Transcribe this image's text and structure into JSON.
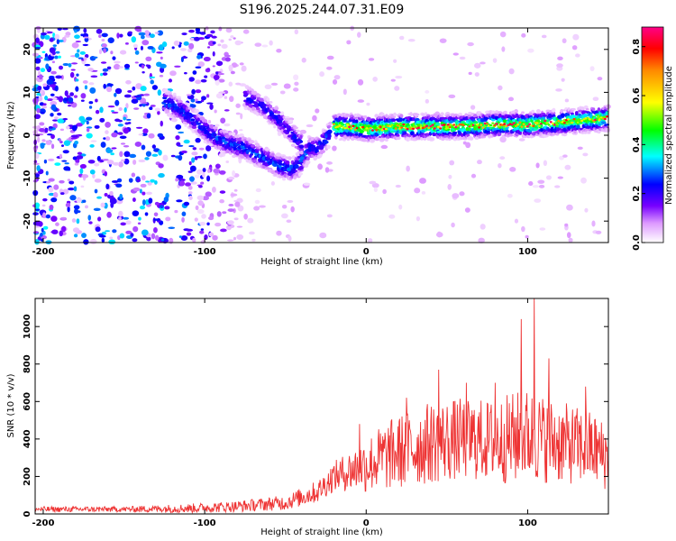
{
  "title": "S196.2025.244.07.31.E09",
  "chart_data": [
    {
      "type": "heatmap",
      "title": "S196.2025.244.07.31.E09",
      "xlabel": "Height of straight line (km)",
      "ylabel": "Frequency (Hz)",
      "xlim": [
        -205,
        150
      ],
      "ylim": [
        -25,
        25
      ],
      "xticks": [
        -200,
        -100,
        0,
        100
      ],
      "xtick_labels": [
        "-200",
        "-100",
        "0",
        "100"
      ],
      "yticks": [
        20,
        10,
        0,
        -10,
        -20
      ],
      "ytick_labels": [
        "20",
        "10",
        "0",
        "-10",
        "-20"
      ],
      "colorbar": {
        "label": "Normalized spectral amplitude",
        "range": [
          0,
          0.88
        ],
        "ticks": [
          0.0,
          0.2,
          0.4,
          0.6,
          0.8
        ],
        "tick_labels": [
          "0.0",
          "0.2",
          "0.4",
          "0.6",
          "0.8"
        ],
        "colors": [
          "#ffffff",
          "#cc66ff",
          "#6600ff",
          "#0000ff",
          "#00ffff",
          "#00ff00",
          "#ffff00",
          "#ff8800",
          "#ff0000",
          "#ff0088"
        ]
      },
      "ridge": {
        "x": [
          -125,
          -115,
          -105,
          -95,
          -85,
          -75,
          -65,
          -55,
          -45,
          -40,
          -35,
          -30,
          -25,
          -20,
          -10,
          0,
          20,
          40,
          60,
          80,
          100,
          120,
          150
        ],
        "y": [
          8,
          6,
          3,
          0,
          -2,
          -3,
          -5,
          -7,
          -8,
          -6,
          -3,
          -3,
          -1,
          2,
          2,
          1.5,
          2,
          2,
          2,
          2.5,
          2.5,
          3,
          4
        ]
      },
      "ridge_upper": {
        "x": [
          -75,
          -65,
          -55,
          -45,
          -40
        ],
        "y": [
          9,
          7,
          4,
          0,
          -2
        ]
      },
      "noise_region_x": [
        -205,
        -110
      ],
      "noise_amplitude_max": 0.35
    },
    {
      "type": "line",
      "xlabel": "Height of straight line (km)",
      "ylabel": "SNR (10 * v/v)",
      "xlim": [
        -205,
        150
      ],
      "ylim": [
        0,
        1150
      ],
      "xticks": [
        -200,
        -100,
        0,
        100
      ],
      "xtick_labels": [
        "-200",
        "-100",
        "0",
        "100"
      ],
      "yticks": [
        0,
        200,
        400,
        600,
        800,
        1000
      ],
      "ytick_labels": [
        "0",
        "200",
        "400",
        "600",
        "800",
        "1000"
      ],
      "color": "#ee3333",
      "envelope": {
        "x": [
          -205,
          -150,
          -110,
          -80,
          -50,
          -30,
          -20,
          -10,
          0,
          10,
          20,
          40,
          60,
          80,
          90,
          100,
          120,
          140,
          150
        ],
        "mean": [
          25,
          25,
          30,
          40,
          60,
          120,
          200,
          230,
          260,
          300,
          330,
          380,
          400,
          390,
          400,
          420,
          380,
          350,
          300
        ],
        "spread": [
          15,
          15,
          25,
          30,
          40,
          60,
          80,
          110,
          150,
          180,
          200,
          220,
          220,
          220,
          250,
          250,
          220,
          200,
          180
        ]
      },
      "peaks": [
        {
          "x": -4,
          "y": 480
        },
        {
          "x": 25,
          "y": 620
        },
        {
          "x": 45,
          "y": 770
        },
        {
          "x": 62,
          "y": 700
        },
        {
          "x": 80,
          "y": 700
        },
        {
          "x": 96,
          "y": 1040
        },
        {
          "x": 104,
          "y": 1150
        },
        {
          "x": 113,
          "y": 830
        },
        {
          "x": 136,
          "y": 680
        }
      ]
    }
  ]
}
